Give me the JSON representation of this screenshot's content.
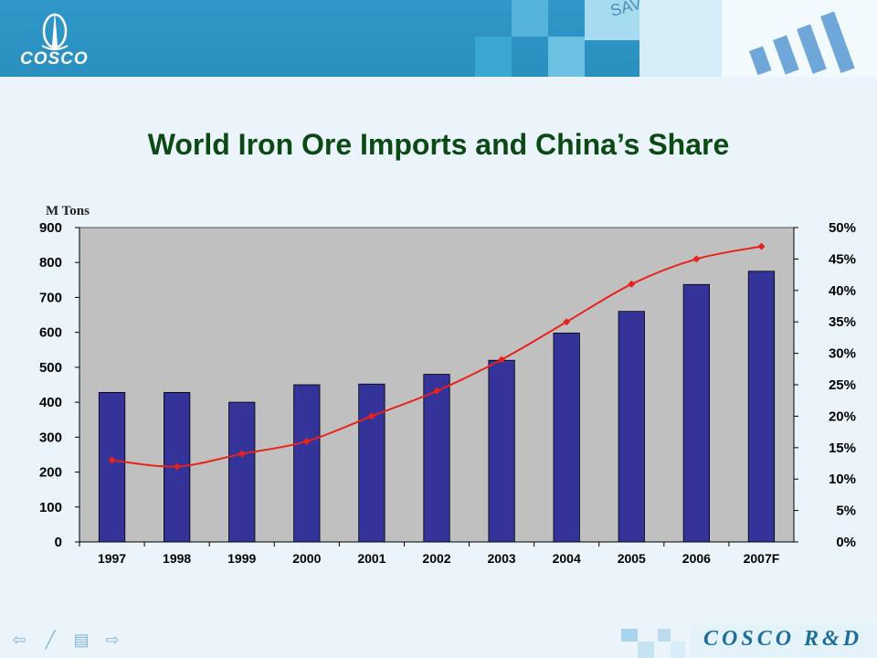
{
  "header": {
    "logo_text": "COSCO"
  },
  "footer": {
    "brand": "COSCO R&D",
    "nav": [
      {
        "name": "back-arrow-icon",
        "glyph": "⇦"
      },
      {
        "name": "pen-icon",
        "glyph": "╱"
      },
      {
        "name": "menu-icon",
        "glyph": "▤"
      },
      {
        "name": "forward-arrow-icon",
        "glyph": "⇨"
      }
    ]
  },
  "colors": {
    "bar": "#333399",
    "line": "#e8221b",
    "plot_bg": "#c0c0c0",
    "title": "#0b4a15",
    "header": "#2f98c8"
  },
  "chart_data": {
    "type": "bar",
    "title": "World Iron Ore Imports and China’s Share",
    "ylabel": "M Tons",
    "categories": [
      "1997",
      "1998",
      "1999",
      "2000",
      "2001",
      "2002",
      "2003",
      "2004",
      "2005",
      "2006",
      "2007F"
    ],
    "ylim": [
      0,
      900
    ],
    "y_ticks": [
      0,
      100,
      200,
      300,
      400,
      500,
      600,
      700,
      800,
      900
    ],
    "y2lim": [
      0,
      50
    ],
    "y2_ticks": [
      "0%",
      "5%",
      "10%",
      "15%",
      "20%",
      "25%",
      "30%",
      "35%",
      "40%",
      "45%",
      "50%"
    ],
    "series": [
      {
        "type": "bar",
        "axis": "left",
        "values": [
          428,
          428,
          400,
          450,
          452,
          480,
          520,
          598,
          660,
          737,
          775
        ]
      },
      {
        "type": "line",
        "axis": "right",
        "values": [
          13,
          12,
          14,
          16,
          20,
          24,
          29,
          35,
          41,
          45,
          47
        ]
      }
    ],
    "grid": false,
    "legend": "none"
  }
}
